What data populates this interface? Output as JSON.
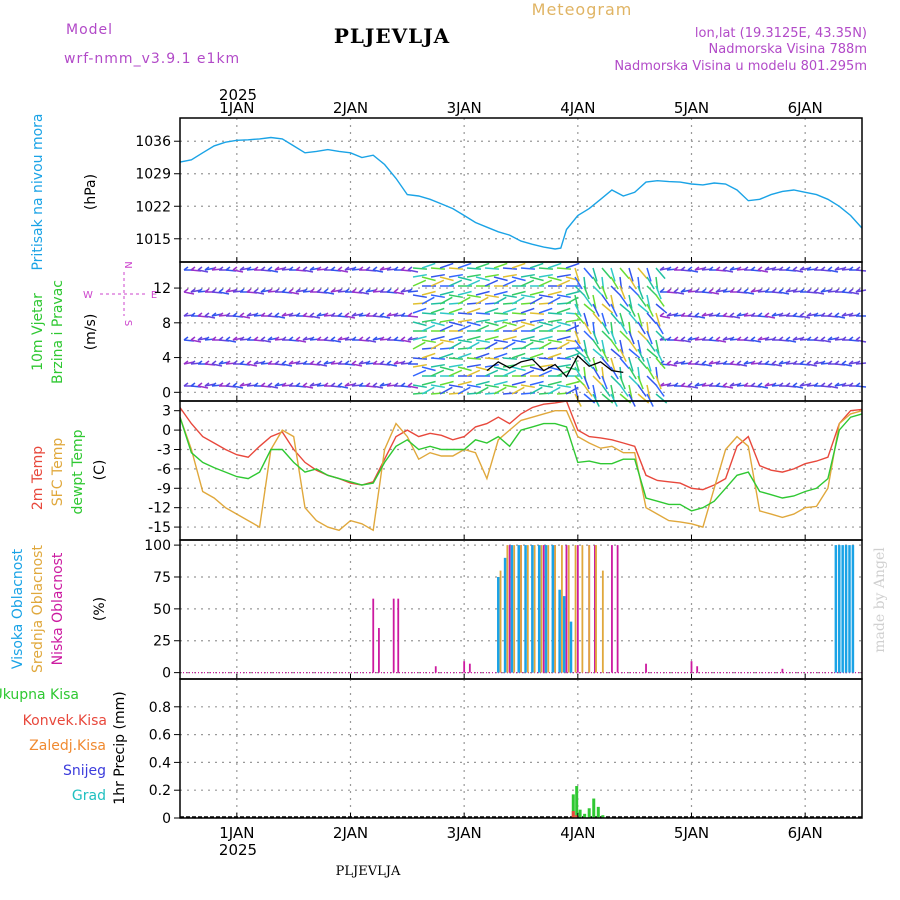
{
  "header": {
    "meteogram": "Meteogram",
    "model_label": "Model",
    "model_name": "wrf-nmm_v3.9.1  e1km",
    "station": "PLJEVLJA",
    "coords": "lon,lat (19.3125E, 43.35N)",
    "elevation": "Nadmorska Visina 788m",
    "model_elevation": "Nadmorska Visina u modelu 801.295m",
    "year_top": "2025",
    "year_bottom": "2025",
    "footer_station": "PLJEVLJA",
    "watermark": "made by Angel"
  },
  "colors": {
    "pressure": "#1aa3e6",
    "temp2m": "#e8483c",
    "sfc": "#e0a83c",
    "dewpt": "#2fc832",
    "high_cloud": "#1aa3e6",
    "mid_cloud": "#e0a83c",
    "low_cloud": "#cc1aa0",
    "total_precip": "#2fc832",
    "conv_precip": "#e8483c",
    "frz_precip": "#f08a30",
    "snow": "#3c3cdc",
    "graupel": "#20c0c0",
    "compass": "#cc44cc",
    "purple_text": "#b24ac8",
    "meteogram_text": "#e0b464"
  },
  "x_axis": {
    "days": [
      "1JAN",
      "2JAN",
      "3JAN",
      "4JAN",
      "5JAN",
      "6JAN"
    ],
    "day_positions": [
      1.0,
      2.0,
      3.0,
      4.0,
      5.0,
      6.0
    ],
    "range": [
      0.5,
      6.5
    ]
  },
  "compass": {
    "n": "N",
    "s": "S",
    "w": "W",
    "e": "E"
  },
  "chart_data": [
    {
      "type": "line",
      "ylabel_parts": [
        "Pritisak na nivou mora",
        "(hPa)"
      ],
      "ylim": [
        1010,
        1041
      ],
      "yticks": [
        1015,
        1022,
        1029,
        1036
      ],
      "series": [
        {
          "x": [
            0.5,
            0.6,
            0.7,
            0.8,
            0.9,
            1.0,
            1.1,
            1.2,
            1.3,
            1.4,
            1.5,
            1.6,
            1.7,
            1.8,
            1.9,
            2.0,
            2.1,
            2.2,
            2.3,
            2.4,
            2.5,
            2.6,
            2.7,
            2.8,
            2.9,
            3.0,
            3.1,
            3.2,
            3.3,
            3.4,
            3.5,
            3.6,
            3.7,
            3.8,
            3.85,
            3.9,
            4.0,
            4.1,
            4.2,
            4.3,
            4.4,
            4.5,
            4.6,
            4.7,
            4.8,
            4.9,
            5.0,
            5.1,
            5.2,
            5.3,
            5.4,
            5.5,
            5.6,
            5.7,
            5.8,
            5.9,
            6.0,
            6.1,
            6.2,
            6.3,
            6.4,
            6.5
          ],
          "y": [
            1031.5,
            1032,
            1033.5,
            1035,
            1035.8,
            1036.2,
            1036.3,
            1036.5,
            1036.8,
            1036.5,
            1035,
            1033.5,
            1033.8,
            1034.2,
            1033.8,
            1033.5,
            1032.5,
            1033,
            1031,
            1028,
            1024.5,
            1024.2,
            1023.5,
            1022.5,
            1021.5,
            1020,
            1018.5,
            1017.5,
            1016.5,
            1015.8,
            1014.5,
            1013.8,
            1013.2,
            1012.8,
            1013,
            1017,
            1020,
            1021.5,
            1023.5,
            1025.5,
            1024.2,
            1025,
            1027.2,
            1027.5,
            1027.3,
            1027.2,
            1026.8,
            1026.6,
            1027,
            1026.8,
            1025.5,
            1023.2,
            1023.5,
            1024.5,
            1025.2,
            1025.5,
            1025,
            1024.5,
            1023.5,
            1022,
            1020,
            1017.3
          ]
        }
      ]
    },
    {
      "type": "line",
      "ylabel_parts": [
        "10m Vjetar",
        "Brzina i Pravac",
        "(m/s)"
      ],
      "ylim": [
        -1,
        15
      ],
      "yticks": [
        0,
        4,
        8,
        12
      ],
      "series": [
        {
          "x": [
            3.2,
            3.3,
            3.4,
            3.5,
            3.6,
            3.7,
            3.8,
            3.9,
            4.0,
            4.1,
            4.2,
            4.3,
            4.4
          ],
          "y": [
            2.5,
            3.5,
            2.8,
            3.5,
            3.8,
            2.5,
            3.2,
            1.8,
            4.2,
            3.0,
            3.5,
            2.5,
            2.3
          ]
        }
      ]
    },
    {
      "type": "line",
      "ylabel_parts": [
        "2m Temp",
        "SFC Temp",
        "dewpt Temp",
        "(C)"
      ],
      "ylim": [
        -17,
        4.5
      ],
      "yticks": [
        3,
        0,
        -3,
        -6,
        -9,
        -12,
        -15
      ],
      "series": [
        {
          "name": "2m Temp",
          "x": [
            0.5,
            0.6,
            0.7,
            0.8,
            0.9,
            1.0,
            1.1,
            1.2,
            1.3,
            1.4,
            1.5,
            1.6,
            1.7,
            1.8,
            1.9,
            2.0,
            2.1,
            2.2,
            2.3,
            2.4,
            2.5,
            2.6,
            2.7,
            2.8,
            2.9,
            3.0,
            3.1,
            3.2,
            3.3,
            3.4,
            3.5,
            3.6,
            3.7,
            3.8,
            3.9,
            4.0,
            4.1,
            4.2,
            4.3,
            4.4,
            4.5,
            4.6,
            4.7,
            4.8,
            4.9,
            5.0,
            5.1,
            5.2,
            5.3,
            5.4,
            5.5,
            5.6,
            5.7,
            5.8,
            5.9,
            6.0,
            6.1,
            6.2,
            6.3,
            6.4,
            6.5
          ],
          "y": [
            3.5,
            1,
            -1,
            -2,
            -3,
            -3.8,
            -4.2,
            -2.5,
            -1,
            -0.3,
            -3,
            -5,
            -6.2,
            -7,
            -7.5,
            -8.2,
            -8.5,
            -8,
            -4.5,
            -1,
            0,
            -1,
            -0.5,
            -0.8,
            -1.5,
            -1,
            0.5,
            1,
            2,
            1,
            2.5,
            3.5,
            4,
            4.2,
            4.5,
            0,
            -1,
            -1.2,
            -1.5,
            -2,
            -2.5,
            -7,
            -7.8,
            -8,
            -8.2,
            -9,
            -9.2,
            -8.5,
            -7.5,
            -2.5,
            -1,
            -5.5,
            -6.2,
            -6.5,
            -6,
            -5.2,
            -4.8,
            -4.2,
            1,
            3,
            3.2
          ]
        },
        {
          "name": "SFC Temp",
          "x": [
            0.5,
            0.6,
            0.7,
            0.8,
            0.9,
            1.0,
            1.1,
            1.2,
            1.3,
            1.4,
            1.5,
            1.6,
            1.7,
            1.8,
            1.9,
            2.0,
            2.1,
            2.2,
            2.3,
            2.4,
            2.5,
            2.6,
            2.7,
            2.8,
            2.9,
            3.0,
            3.1,
            3.2,
            3.3,
            3.4,
            3.5,
            3.6,
            3.7,
            3.8,
            3.9,
            4.0,
            4.1,
            4.2,
            4.3,
            4.4,
            4.5,
            4.6,
            4.7,
            4.8,
            4.9,
            5.0,
            5.1,
            5.2,
            5.3,
            5.4,
            5.5,
            5.6,
            5.7,
            5.8,
            5.9,
            6.0,
            6.1,
            6.2,
            6.3,
            6.4,
            6.5
          ],
          "y": [
            2,
            -3,
            -9.5,
            -10.5,
            -12,
            -13,
            -14,
            -15,
            -3,
            0,
            -1,
            -12,
            -14,
            -15,
            -15.5,
            -14,
            -14.5,
            -15.5,
            -3,
            1,
            -1,
            -4.5,
            -3.5,
            -4,
            -4,
            -3,
            -3.5,
            -7.5,
            -1.5,
            0,
            1.5,
            2,
            2.5,
            3,
            3,
            -1,
            -2,
            -2.8,
            -2.5,
            -3.5,
            -3.5,
            -12,
            -13,
            -14,
            -14.2,
            -14.5,
            -15,
            -9,
            -3,
            -1,
            -2.5,
            -12.5,
            -13,
            -13.5,
            -13,
            -12,
            -11.8,
            -9,
            1,
            2.5,
            3
          ]
        },
        {
          "name": "dewpt Temp",
          "x": [
            0.5,
            0.6,
            0.7,
            0.8,
            0.9,
            1.0,
            1.1,
            1.2,
            1.3,
            1.4,
            1.5,
            1.6,
            1.7,
            1.8,
            1.9,
            2.0,
            2.1,
            2.2,
            2.3,
            2.4,
            2.5,
            2.6,
            2.7,
            2.8,
            2.9,
            3.0,
            3.1,
            3.2,
            3.3,
            3.4,
            3.5,
            3.6,
            3.7,
            3.8,
            3.9,
            4.0,
            4.1,
            4.2,
            4.3,
            4.4,
            4.5,
            4.6,
            4.7,
            4.8,
            4.9,
            5.0,
            5.1,
            5.2,
            5.3,
            5.4,
            5.5,
            5.6,
            5.7,
            5.8,
            5.9,
            6.0,
            6.1,
            6.2,
            6.3,
            6.4,
            6.5
          ],
          "y": [
            2,
            -3.5,
            -5,
            -5.8,
            -6.5,
            -7.2,
            -7.5,
            -6.5,
            -3,
            -3,
            -5,
            -6.5,
            -6,
            -7,
            -7.5,
            -8,
            -8.5,
            -8.2,
            -5,
            -2.5,
            -1.5,
            -3,
            -2.5,
            -3,
            -3,
            -3,
            -1.5,
            -2,
            -1,
            -2.5,
            0,
            0.5,
            1,
            1,
            0.5,
            -5,
            -4.8,
            -5.2,
            -5.2,
            -4.5,
            -4.5,
            -10.5,
            -11,
            -11.5,
            -11.5,
            -12.5,
            -12,
            -11,
            -9,
            -7,
            -6.5,
            -9.5,
            -10,
            -10.5,
            -10.2,
            -9.5,
            -9,
            -7.5,
            0,
            2,
            2.5
          ]
        }
      ]
    },
    {
      "type": "bar",
      "ylabel_parts": [
        "Visoka Oblacnost",
        "Srednja Oblacnost",
        "Niska Oblacnost",
        "(%)"
      ],
      "ylim": [
        -5,
        104
      ],
      "yticks": [
        0,
        25,
        50,
        75,
        100
      ],
      "series": [
        {
          "name": "Niska Oblacnost",
          "x": [
            2.2,
            2.25,
            2.38,
            2.42,
            2.75,
            3.0,
            3.05,
            3.4,
            3.5,
            3.6,
            3.7,
            3.8,
            3.9,
            4.0,
            4.1,
            4.15,
            4.3,
            4.35,
            4.6,
            5.0,
            5.05,
            5.8
          ],
          "y": [
            58,
            35,
            58,
            58,
            5,
            9,
            7,
            100,
            100,
            100,
            100,
            100,
            100,
            100,
            100,
            100,
            100,
            100,
            7,
            9,
            5,
            3
          ]
        },
        {
          "name": "Srednja Oblacnost",
          "x": [
            3.32,
            3.38,
            3.44,
            3.5,
            3.56,
            3.62,
            3.68,
            3.74,
            3.8,
            3.86,
            3.92,
            3.98,
            4.04,
            4.1,
            4.16,
            4.22
          ],
          "y": [
            80,
            100,
            100,
            100,
            100,
            100,
            100,
            100,
            100,
            100,
            100,
            100,
            100,
            100,
            100,
            80
          ]
        },
        {
          "name": "Visoka Oblacnost",
          "x": [
            3.3,
            3.36,
            3.42,
            3.48,
            3.54,
            3.6,
            3.66,
            3.72,
            3.78,
            3.84,
            3.88,
            3.94,
            6.27,
            6.3,
            6.33,
            6.36,
            6.39,
            6.42
          ],
          "y": [
            75,
            90,
            100,
            100,
            100,
            100,
            100,
            100,
            100,
            65,
            60,
            40,
            100,
            100,
            100,
            100,
            100,
            100
          ]
        }
      ]
    },
    {
      "type": "bar",
      "ylabel_parts": [
        "Ukupna Kisa",
        "Konvek.Kisa",
        "Zaledj.Kisa",
        "Snijeg",
        "Grad",
        "1hr Precip (mm)"
      ],
      "ylim": [
        0,
        1.0
      ],
      "yticks": [
        0,
        0.2,
        0.4,
        0.6,
        0.8
      ],
      "series": [
        {
          "name": "Ukupna Kisa",
          "x": [
            3.96,
            3.99,
            4.02,
            4.06,
            4.1,
            4.14,
            4.18,
            4.22
          ],
          "y": [
            0.17,
            0.23,
            0.06,
            0.03,
            0.07,
            0.14,
            0.08,
            0.02
          ]
        },
        {
          "name": "Konvek.Kisa",
          "x": [
            3.96,
            3.99
          ],
          "y": [
            0.05,
            0.02
          ]
        }
      ]
    }
  ],
  "legend_labels": {
    "p1": "Pritisak na nivou mora",
    "p1u": "(hPa)",
    "p2a": "10m Vjetar",
    "p2b": "Brzina i Pravac",
    "p2u": "(m/s)",
    "p3a": "2m Temp",
    "p3b": "SFC Temp",
    "p3c": "dewpt Temp",
    "p3u": "(C)",
    "p4a": "Visoka Oblacnost",
    "p4b": "Srednja Oblacnost",
    "p4c": "Niska Oblacnost",
    "p4u": "(%)",
    "p5a": "Ukupna Kisa",
    "p5b": "Konvek.Kisa",
    "p5c": "Zaledj.Kisa",
    "p5d": "Snijeg",
    "p5e": "Grad",
    "p5u": "1hr Precip (mm)"
  }
}
